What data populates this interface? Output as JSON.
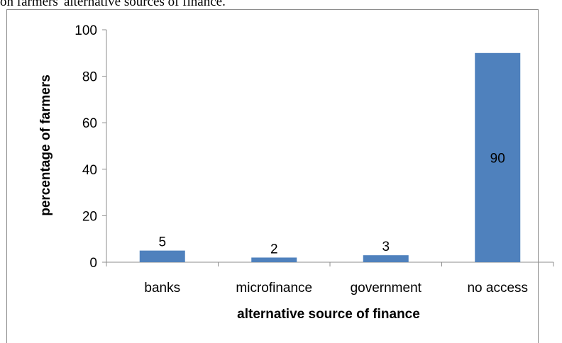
{
  "caption": "on farmers' alternative sources of finance.",
  "chart_data": {
    "type": "bar",
    "categories": [
      "banks",
      "microfinance",
      "government",
      "no access"
    ],
    "values": [
      5,
      2,
      3,
      90
    ],
    "data_labels": [
      "5",
      "2",
      "3",
      "90"
    ],
    "title": "",
    "xlabel": "alternative source of finance",
    "ylabel": "percentage of farmers",
    "ylim": [
      0,
      100
    ],
    "yticks": [
      0,
      20,
      40,
      60,
      80,
      100
    ],
    "bar_color": "#4f81bd",
    "grid": false,
    "legend": "none"
  }
}
